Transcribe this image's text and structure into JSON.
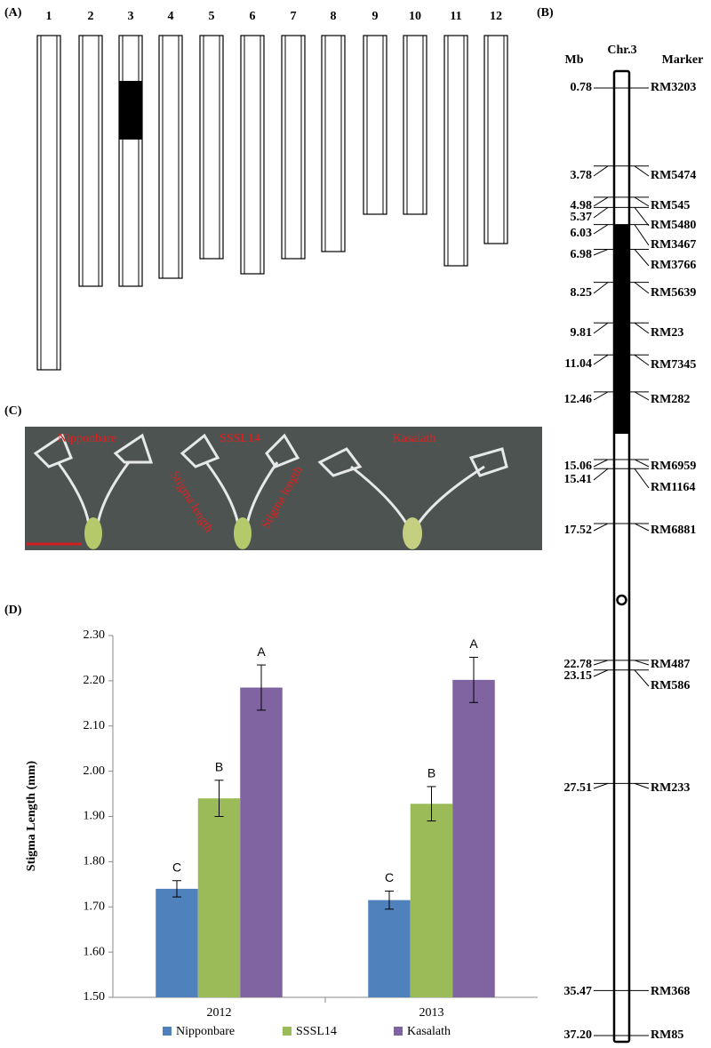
{
  "panel_a": {
    "label": "(A)",
    "chromosomes": [
      "1",
      "2",
      "3",
      "4",
      "5",
      "6",
      "7",
      "8",
      "9",
      "10",
      "11",
      "12"
    ]
  },
  "panel_b": {
    "label": "(B)",
    "chromosome": "Chr.3",
    "left_header": "Mb",
    "right_header": "Marker",
    "markers": [
      {
        "mb": 0.78,
        "name": "RM3203"
      },
      {
        "mb": 3.78,
        "name": "RM5474"
      },
      {
        "mb": 4.98,
        "name": "RM545"
      },
      {
        "mb": 5.37,
        "name": "RM5480"
      },
      {
        "mb": 6.03,
        "name": "RM3467"
      },
      {
        "mb": 6.98,
        "name": "RM3766"
      },
      {
        "mb": 8.25,
        "name": "RM5639"
      },
      {
        "mb": 9.81,
        "name": "RM23"
      },
      {
        "mb": 11.04,
        "name": "RM7345"
      },
      {
        "mb": 12.46,
        "name": "RM282"
      },
      {
        "mb": 15.06,
        "name": "RM6959"
      },
      {
        "mb": 15.41,
        "name": "RM1164"
      },
      {
        "mb": 17.52,
        "name": "RM6881"
      },
      {
        "mb": 22.78,
        "name": "RM487"
      },
      {
        "mb": 23.15,
        "name": "RM586"
      },
      {
        "mb": 27.51,
        "name": "RM233"
      },
      {
        "mb": 35.47,
        "name": "RM368"
      },
      {
        "mb": {
          "value": 37.2,
          "label": "37.20"
        },
        "name": "RM85"
      }
    ]
  },
  "panel_c": {
    "label": "(C)",
    "lines": [
      "Nipponbare",
      "SSSL14",
      "Kasalath"
    ],
    "annotation": "Stigma length"
  },
  "panel_d_label": "(D)",
  "chart_data": {
    "type": "bar",
    "ylabel": "Stigma Length (mm)",
    "categories": [
      "2012",
      "2013"
    ],
    "ylim": [
      1.5,
      2.3
    ],
    "yticks": [
      {
        "value": 1.5,
        "label": "1.50"
      },
      {
        "value": 1.6,
        "label": "1.60"
      },
      {
        "value": 1.7,
        "label": "1.70"
      },
      {
        "value": 1.8,
        "label": "1.80"
      },
      {
        "value": 1.9,
        "label": "1.90"
      },
      {
        "value": 2.0,
        "label": "2.00"
      },
      {
        "value": 2.1,
        "label": "2.10"
      },
      {
        "value": 2.2,
        "label": "2.20"
      },
      {
        "value": 2.3,
        "label": "2.30"
      }
    ],
    "series": [
      {
        "name": "Nipponbare",
        "color": "#4f81bd",
        "values": [
          1.74,
          1.715
        ],
        "errors": [
          0.018,
          0.02
        ],
        "letters": [
          "C",
          "C"
        ]
      },
      {
        "name": "SSSL14",
        "color": "#9bbb59",
        "values": [
          1.94,
          1.928
        ],
        "errors": [
          0.04,
          0.038
        ],
        "letters": [
          "B",
          "B"
        ]
      },
      {
        "name": "Kasalath",
        "color": "#8064a2",
        "values": [
          2.185,
          2.202
        ],
        "errors": [
          0.05,
          0.05
        ],
        "letters": [
          "A",
          "A"
        ]
      }
    ]
  }
}
